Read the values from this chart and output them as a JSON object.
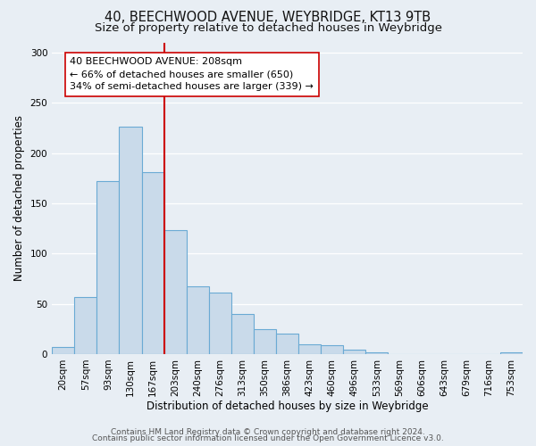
{
  "title": "40, BEECHWOOD AVENUE, WEYBRIDGE, KT13 9TB",
  "subtitle": "Size of property relative to detached houses in Weybridge",
  "xlabel": "Distribution of detached houses by size in Weybridge",
  "ylabel": "Number of detached properties",
  "bar_labels": [
    "20sqm",
    "57sqm",
    "93sqm",
    "130sqm",
    "167sqm",
    "203sqm",
    "240sqm",
    "276sqm",
    "313sqm",
    "350sqm",
    "386sqm",
    "423sqm",
    "460sqm",
    "496sqm",
    "533sqm",
    "569sqm",
    "606sqm",
    "643sqm",
    "679sqm",
    "716sqm",
    "753sqm"
  ],
  "bar_values": [
    7,
    57,
    172,
    226,
    181,
    123,
    67,
    61,
    40,
    25,
    20,
    10,
    9,
    4,
    2,
    0,
    0,
    0,
    0,
    0,
    2
  ],
  "bar_color": "#c9daea",
  "bar_edgecolor": "#6aaad4",
  "ylim": [
    0,
    310
  ],
  "yticks": [
    0,
    50,
    100,
    150,
    200,
    250,
    300
  ],
  "vline_index": 5,
  "vline_color": "#cc0000",
  "annotation_title": "40 BEECHWOOD AVENUE: 208sqm",
  "annotation_line1": "← 66% of detached houses are smaller (650)",
  "annotation_line2": "34% of semi-detached houses are larger (339) →",
  "annotation_box_color": "#ffffff",
  "annotation_box_edgecolor": "#cc0000",
  "bg_color": "#e8eef4",
  "footer_line1": "Contains HM Land Registry data © Crown copyright and database right 2024.",
  "footer_line2": "Contains public sector information licensed under the Open Government Licence v3.0.",
  "title_fontsize": 10.5,
  "subtitle_fontsize": 9.5,
  "xlabel_fontsize": 8.5,
  "ylabel_fontsize": 8.5,
  "tick_fontsize": 7.5,
  "annotation_fontsize": 8,
  "footer_fontsize": 6.5
}
